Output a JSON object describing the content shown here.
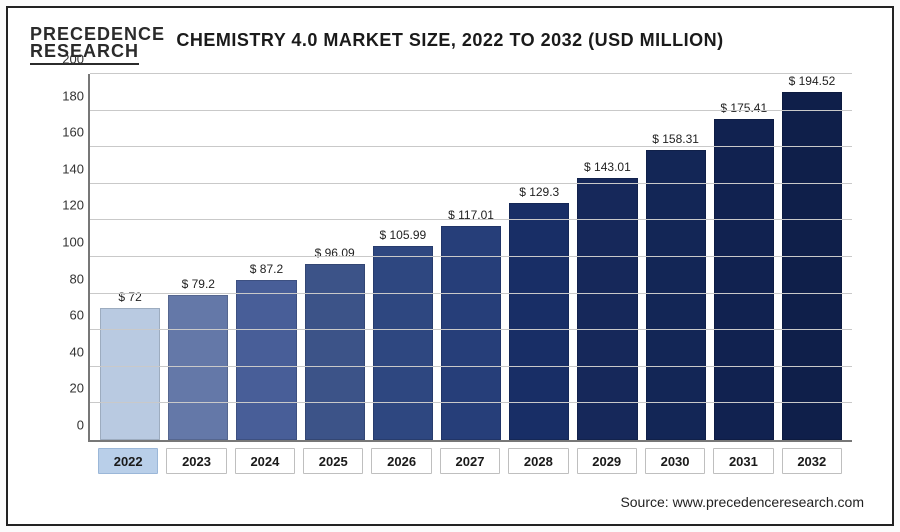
{
  "logo": {
    "line1": "PRECEDENCE",
    "line2": "RESEARCH"
  },
  "title": "CHEMISTRY 4.0 MARKET SIZE, 2022 TO 2032 (USD MILLION)",
  "source_label": "Source: www.precedenceresearch.com",
  "chart": {
    "type": "bar",
    "ylim": [
      0,
      200
    ],
    "ytick_step": 20,
    "yticks": [
      0,
      20,
      40,
      60,
      80,
      100,
      120,
      140,
      160,
      180,
      200
    ],
    "grid_color": "#c9c9c9",
    "axis_color": "#777777",
    "background_color": "#ffffff",
    "value_prefix": "$ ",
    "label_fontsize": 13,
    "value_fontsize": 12,
    "title_fontsize": 18,
    "bar_width": 0.82,
    "highlight_category": "2022",
    "highlight_bg": "#b9cfe9",
    "categories": [
      "2022",
      "2023",
      "2024",
      "2025",
      "2026",
      "2027",
      "2028",
      "2029",
      "2030",
      "2031",
      "2032"
    ],
    "values": [
      72,
      79.2,
      87.2,
      96.09,
      105.99,
      117.01,
      129.3,
      143.01,
      158.31,
      175.41,
      194.52
    ],
    "value_labels": [
      "$ 72",
      "$ 79.2",
      "$ 87.2",
      "$ 96.09",
      "$ 105.99",
      "$ 117.01",
      "$ 129.3",
      "$ 143.01",
      "$ 158.31",
      "$ 175.41",
      "$ 194.52"
    ],
    "bar_colors": [
      "#b9cae1",
      "#6478a8",
      "#485e98",
      "#3c5388",
      "#2e4780",
      "#263e79",
      "#182e66",
      "#16285a",
      "#132656",
      "#112250",
      "#0f1f4a"
    ]
  }
}
